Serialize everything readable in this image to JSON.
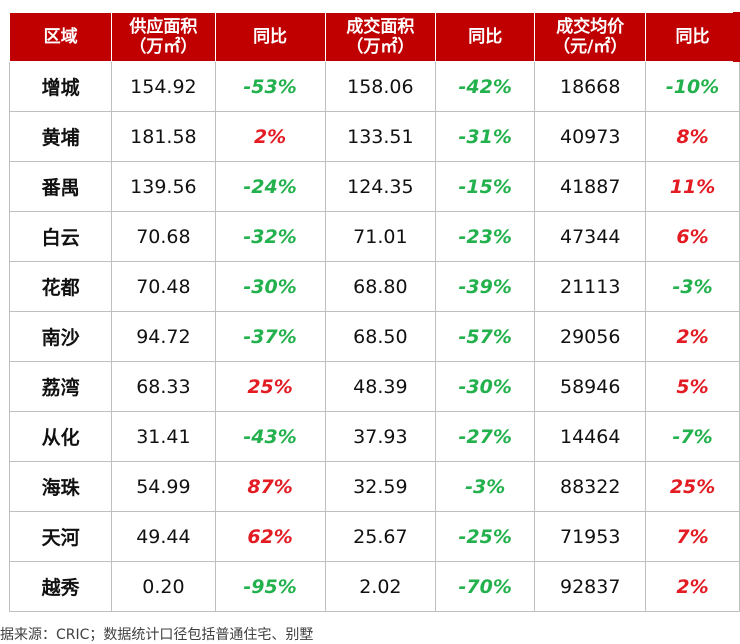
{
  "headers": [
    {
      "l1": "区域",
      "l2": ""
    },
    {
      "l1": "供应面积",
      "l2": "（万㎡）"
    },
    {
      "l1": "同比",
      "l2": ""
    },
    {
      "l1": "成交面积",
      "l2": "（万㎡）"
    },
    {
      "l1": "同比",
      "l2": ""
    },
    {
      "l1": "成交均价",
      "l2": "（元/㎡）"
    },
    {
      "l1": "同比",
      "l2": ""
    }
  ],
  "rows": [
    {
      "region": "增城",
      "supply": "154.92",
      "supply_yoy": "-53%",
      "deal": "158.06",
      "deal_yoy": "-42%",
      "price": "18668",
      "price_yoy": "-10%"
    },
    {
      "region": "黄埔",
      "supply": "181.58",
      "supply_yoy": "2%",
      "deal": "133.51",
      "deal_yoy": "-31%",
      "price": "40973",
      "price_yoy": "8%"
    },
    {
      "region": "番禺",
      "supply": "139.56",
      "supply_yoy": "-24%",
      "deal": "124.35",
      "deal_yoy": "-15%",
      "price": "41887",
      "price_yoy": "11%"
    },
    {
      "region": "白云",
      "supply": "70.68",
      "supply_yoy": "-32%",
      "deal": "71.01",
      "deal_yoy": "-23%",
      "price": "47344",
      "price_yoy": "6%"
    },
    {
      "region": "花都",
      "supply": "70.48",
      "supply_yoy": "-30%",
      "deal": "68.80",
      "deal_yoy": "-39%",
      "price": "21113",
      "price_yoy": "-3%"
    },
    {
      "region": "南沙",
      "supply": "94.72",
      "supply_yoy": "-37%",
      "deal": "68.50",
      "deal_yoy": "-57%",
      "price": "29056",
      "price_yoy": "2%"
    },
    {
      "region": "荔湾",
      "supply": "68.33",
      "supply_yoy": "25%",
      "deal": "48.39",
      "deal_yoy": "-30%",
      "price": "58946",
      "price_yoy": "5%"
    },
    {
      "region": "从化",
      "supply": "31.41",
      "supply_yoy": "-43%",
      "deal": "37.93",
      "deal_yoy": "-27%",
      "price": "14464",
      "price_yoy": "-7%"
    },
    {
      "region": "海珠",
      "supply": "54.99",
      "supply_yoy": "87%",
      "deal": "32.59",
      "deal_yoy": "-3%",
      "price": "88322",
      "price_yoy": "25%"
    },
    {
      "region": "天河",
      "supply": "49.44",
      "supply_yoy": "62%",
      "deal": "25.67",
      "deal_yoy": "-25%",
      "price": "71953",
      "price_yoy": "7%"
    },
    {
      "region": "越秀",
      "supply": "0.20",
      "supply_yoy": "-95%",
      "deal": "2.02",
      "deal_yoy": "-70%",
      "price": "92837",
      "price_yoy": "2%"
    }
  ],
  "footnote": "据来源：CRIC；数据统计口径包括普通住宅、别墅",
  "colors": {
    "header_bg": "#c00000",
    "negative": "#22b14c",
    "positive": "#e31b23"
  }
}
